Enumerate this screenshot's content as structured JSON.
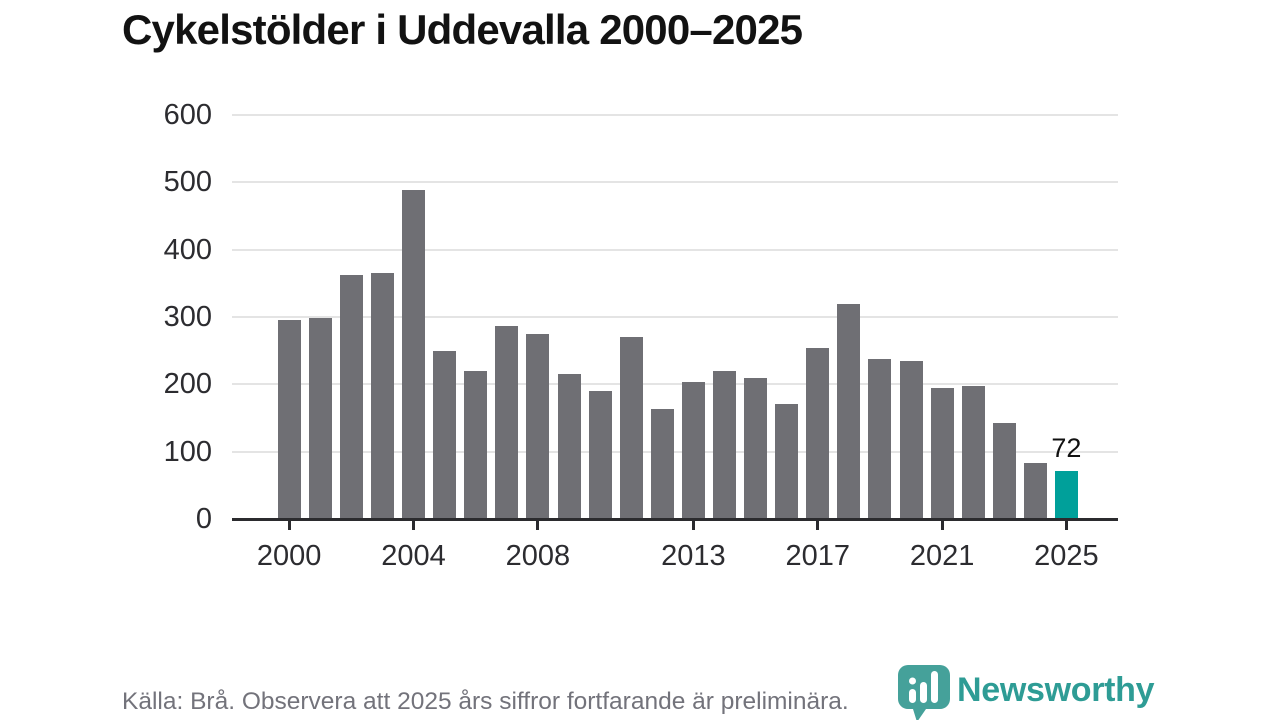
{
  "title": "Cykelstölder i Uddevalla 2000–2025",
  "footer": {
    "source_note": "Källa: Brå. Observera att 2025 års siffror fortfarande är preliminära."
  },
  "branding": {
    "logo_name": "newsworthy-logo",
    "logo_text": "Newsworthy",
    "logo_color": "#2e9c95",
    "logo_mark_color": "#45a19a"
  },
  "chart_data": {
    "type": "bar",
    "title": "Cykelstölder i Uddevalla 2000–2025",
    "x": [
      2000,
      2001,
      2002,
      2003,
      2004,
      2005,
      2006,
      2007,
      2008,
      2009,
      2010,
      2011,
      2012,
      2013,
      2014,
      2015,
      2016,
      2017,
      2018,
      2019,
      2020,
      2021,
      2022,
      2023,
      2024,
      2025
    ],
    "values": [
      296,
      299,
      363,
      366,
      489,
      250,
      220,
      287,
      275,
      215,
      190,
      270,
      163,
      203,
      220,
      209,
      171,
      254,
      319,
      237,
      235,
      194,
      197,
      142,
      83,
      72
    ],
    "highlight_year": 2025,
    "highlight_value_label": "72",
    "xlabel": "",
    "ylabel": "",
    "ylim": [
      0,
      600
    ],
    "y_ticks": [
      0,
      100,
      200,
      300,
      400,
      500,
      600
    ],
    "x_tick_labels": [
      2000,
      2004,
      2008,
      2013,
      2017,
      2021,
      2025
    ],
    "grid": true,
    "legend": "none",
    "bar_color": "#6f6f74",
    "highlight_color": "#00a09a",
    "gridline_color": "#e4e4e4",
    "axis_color": "#2b2b2e"
  }
}
